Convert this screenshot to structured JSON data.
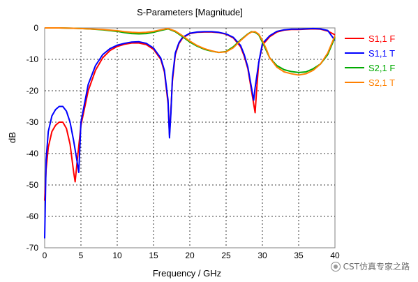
{
  "chart_data": {
    "type": "line",
    "title": "S-Parameters [Magnitude]",
    "xlabel": "Frequency / GHz",
    "ylabel": "dB",
    "xlim": [
      0,
      40
    ],
    "ylim": [
      -70,
      0
    ],
    "xticks": [
      0,
      5,
      10,
      15,
      20,
      25,
      30,
      35,
      40
    ],
    "yticks": [
      0,
      -10,
      -20,
      -30,
      -40,
      -50,
      -60,
      -70
    ],
    "grid": true,
    "legend_position": "right",
    "series": [
      {
        "name": "S1,1 F",
        "color": "#ff0000",
        "x": [
          0,
          0.2,
          0.5,
          1,
          1.5,
          2,
          2.5,
          3,
          3.5,
          4,
          4.2,
          4.5,
          5,
          6,
          7,
          8,
          9,
          10,
          11,
          12,
          13,
          14,
          15,
          16,
          16.5,
          17,
          17.2,
          17.4,
          17.6,
          18,
          18.5,
          19,
          20,
          21,
          22,
          23,
          24,
          25,
          26,
          27,
          27.5,
          28,
          28.5,
          29,
          29.2,
          29.5,
          30,
          31,
          32,
          33,
          34,
          35,
          36,
          37,
          38,
          39,
          40
        ],
        "y": [
          -55,
          -45,
          -38,
          -33,
          -31,
          -30,
          -30,
          -32,
          -37,
          -46,
          -49,
          -42,
          -31,
          -20,
          -13.5,
          -9.5,
          -7.2,
          -5.9,
          -5.2,
          -4.8,
          -4.8,
          -5.3,
          -6.8,
          -10,
          -14,
          -24,
          -34,
          -26,
          -17,
          -8.5,
          -5,
          -3.2,
          -1.8,
          -1.4,
          -1.3,
          -1.3,
          -1.5,
          -2,
          -3.2,
          -6,
          -9,
          -13,
          -20,
          -27,
          -20,
          -11,
          -5.5,
          -2.8,
          -1.3,
          -0.7,
          -0.5,
          -0.5,
          -0.4,
          -0.3,
          -0.4,
          -1,
          -2.2
        ]
      },
      {
        "name": "S1,1 T",
        "color": "#0000ff",
        "x": [
          0,
          0.2,
          0.5,
          1,
          1.5,
          2,
          2.5,
          3,
          3.5,
          4,
          4.5,
          4.7,
          5,
          6,
          7,
          8,
          9,
          10,
          11,
          12,
          13,
          14,
          15,
          16,
          16.5,
          17,
          17.2,
          17.4,
          17.6,
          18,
          18.5,
          19,
          20,
          21,
          22,
          23,
          24,
          25,
          26,
          27,
          27.5,
          28,
          28.5,
          28.8,
          29,
          29.5,
          30,
          31,
          32,
          33,
          34,
          35,
          36,
          37,
          38,
          39,
          40
        ],
        "y": [
          -67,
          -42,
          -33,
          -28,
          -26,
          -25,
          -25,
          -26.5,
          -30,
          -36,
          -43,
          -46,
          -30,
          -18,
          -12,
          -8.5,
          -6.6,
          -5.5,
          -4.9,
          -4.5,
          -4.4,
          -4.9,
          -6.4,
          -9.6,
          -13.5,
          -23,
          -35,
          -27,
          -16,
          -8,
          -4.7,
          -3,
          -1.7,
          -1.3,
          -1.2,
          -1.2,
          -1.4,
          -1.9,
          -3,
          -5.6,
          -8.5,
          -12.5,
          -19,
          -23,
          -19,
          -11,
          -5,
          -2.5,
          -1.1,
          -0.6,
          -0.4,
          -0.4,
          -0.3,
          -0.2,
          -0.3,
          -0.8,
          -4
        ]
      },
      {
        "name": "S2,1 F",
        "color": "#00aa00",
        "x": [
          0,
          2,
          4,
          5,
          6,
          8,
          10,
          11,
          12,
          13,
          14,
          15,
          16,
          17,
          18,
          19,
          20,
          21,
          22,
          23,
          24,
          25,
          26,
          27,
          28,
          28.5,
          29,
          29.5,
          30,
          30.5,
          31,
          32,
          33,
          34,
          35,
          36,
          37,
          38,
          39,
          40
        ],
        "y": [
          0,
          0,
          -0.1,
          -0.2,
          -0.3,
          -0.6,
          -1.1,
          -1.5,
          -1.8,
          -1.9,
          -1.8,
          -1.4,
          -0.8,
          -0.3,
          -1.2,
          -2.8,
          -4.5,
          -5.8,
          -6.8,
          -7.4,
          -7.8,
          -7.5,
          -6,
          -3.8,
          -1.9,
          -1.2,
          -1.4,
          -2.2,
          -4.5,
          -7,
          -9.5,
          -12,
          -13.3,
          -13.9,
          -14.2,
          -14,
          -13,
          -11.5,
          -8.5,
          -3
        ]
      },
      {
        "name": "S2,1 T",
        "color": "#ff8000",
        "x": [
          0,
          2,
          4,
          5,
          6,
          8,
          10,
          11,
          12,
          13,
          14,
          15,
          16,
          17,
          18,
          19,
          20,
          21,
          22,
          23,
          24,
          25,
          26,
          27,
          28,
          28.5,
          29,
          29.5,
          30,
          30.5,
          31,
          32,
          33,
          34,
          35,
          36,
          37,
          38,
          39,
          40
        ],
        "y": [
          0,
          0,
          -0.1,
          -0.2,
          -0.3,
          -0.5,
          -0.9,
          -1.2,
          -1.4,
          -1.5,
          -1.4,
          -1.1,
          -0.6,
          -0.2,
          -1,
          -2.5,
          -4.2,
          -5.6,
          -6.6,
          -7.3,
          -7.8,
          -7.6,
          -6.3,
          -4,
          -2,
          -1.3,
          -1.2,
          -2,
          -4,
          -6.5,
          -9.5,
          -12.5,
          -14,
          -14.6,
          -15,
          -14.6,
          -13.5,
          -11.5,
          -8,
          -2.5
        ]
      }
    ]
  },
  "watermark": {
    "text": "CST仿真专家之路",
    "icon": "wechat-icon"
  }
}
